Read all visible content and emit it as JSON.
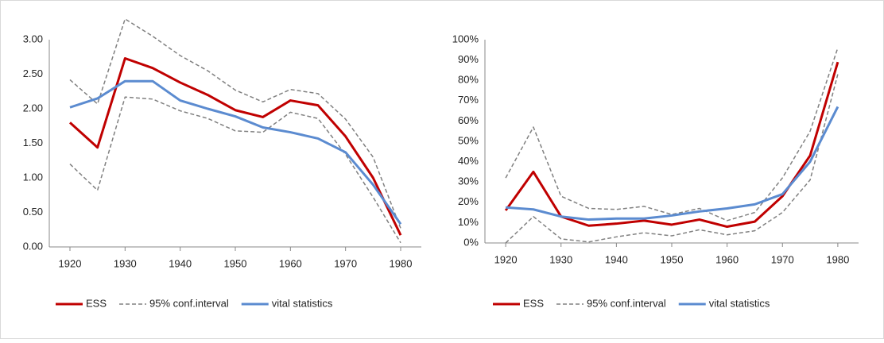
{
  "chart_data": [
    {
      "type": "line",
      "x": [
        1920,
        1925,
        1930,
        1935,
        1940,
        1945,
        1950,
        1955,
        1960,
        1965,
        1970,
        1975,
        1980
      ],
      "xlim": [
        1916.25,
        1983.75
      ],
      "xticks": [
        1920,
        1930,
        1940,
        1950,
        1960,
        1970,
        1980
      ],
      "ylim": [
        0,
        3
      ],
      "yticks": [
        {
          "value": 0,
          "label": "0.00"
        },
        {
          "value": 0.5,
          "label": "0.50"
        },
        {
          "value": 1,
          "label": "1.00"
        },
        {
          "value": 1.5,
          "label": "1.50"
        },
        {
          "value": 2,
          "label": "2.00"
        },
        {
          "value": 2.5,
          "label": "2.50"
        },
        {
          "value": 3,
          "label": "3.00"
        }
      ],
      "series": [
        {
          "name": "ESS",
          "color": "#c00000",
          "values": [
            1.8,
            1.44,
            2.73,
            2.59,
            2.38,
            2.2,
            1.98,
            1.88,
            2.12,
            2.05,
            1.6,
            1.0,
            0.17
          ]
        },
        {
          "name": "95% conf.interval",
          "color": "#808080",
          "dashed": true,
          "upper": [
            2.42,
            2.07,
            3.3,
            3.05,
            2.77,
            2.55,
            2.27,
            2.1,
            2.28,
            2.22,
            1.85,
            1.3,
            0.27
          ],
          "lower": [
            1.2,
            0.82,
            2.17,
            2.14,
            1.97,
            1.86,
            1.68,
            1.66,
            1.95,
            1.86,
            1.34,
            0.72,
            0.06
          ]
        },
        {
          "name": "vital statistics",
          "color": "#5b8bd0",
          "values": [
            2.02,
            2.15,
            2.4,
            2.4,
            2.12,
            2.0,
            1.89,
            1.73,
            1.66,
            1.57,
            1.37,
            0.9,
            0.33
          ]
        }
      ]
    },
    {
      "type": "line",
      "x": [
        1920,
        1925,
        1930,
        1935,
        1940,
        1945,
        1950,
        1955,
        1960,
        1965,
        1970,
        1975,
        1980
      ],
      "xlim": [
        1916.25,
        1983.75
      ],
      "xticks": [
        1920,
        1930,
        1940,
        1950,
        1960,
        1970,
        1980
      ],
      "ylim": [
        0,
        100
      ],
      "yticks": [
        {
          "value": 0,
          "label": "0%"
        },
        {
          "value": 10,
          "label": "10%"
        },
        {
          "value": 20,
          "label": "20%"
        },
        {
          "value": 30,
          "label": "30%"
        },
        {
          "value": 40,
          "label": "40%"
        },
        {
          "value": 50,
          "label": "50%"
        },
        {
          "value": 60,
          "label": "60%"
        },
        {
          "value": 70,
          "label": "70%"
        },
        {
          "value": 80,
          "label": "80%"
        },
        {
          "value": 90,
          "label": "90%"
        },
        {
          "value": 100,
          "label": "100%"
        }
      ],
      "series": [
        {
          "name": "ESS",
          "color": "#c00000",
          "values": [
            16,
            35,
            13,
            8.5,
            9.5,
            11,
            9,
            11.5,
            8,
            10.5,
            23,
            43,
            89
          ]
        },
        {
          "name": "95% conf.interval",
          "color": "#808080",
          "dashed": true,
          "upper": [
            32,
            57,
            23,
            17,
            16.5,
            18,
            14,
            17,
            11,
            15,
            32,
            55,
            96
          ],
          "lower": [
            0,
            13,
            2,
            0.5,
            3,
            5,
            3.5,
            6.5,
            4,
            6,
            15,
            31,
            83
          ]
        },
        {
          "name": "vital statistics",
          "color": "#5b8bd0",
          "values": [
            17.5,
            16.5,
            13,
            11.5,
            12,
            12,
            13.5,
            15.5,
            17,
            19,
            24,
            40,
            67
          ]
        }
      ]
    }
  ]
}
